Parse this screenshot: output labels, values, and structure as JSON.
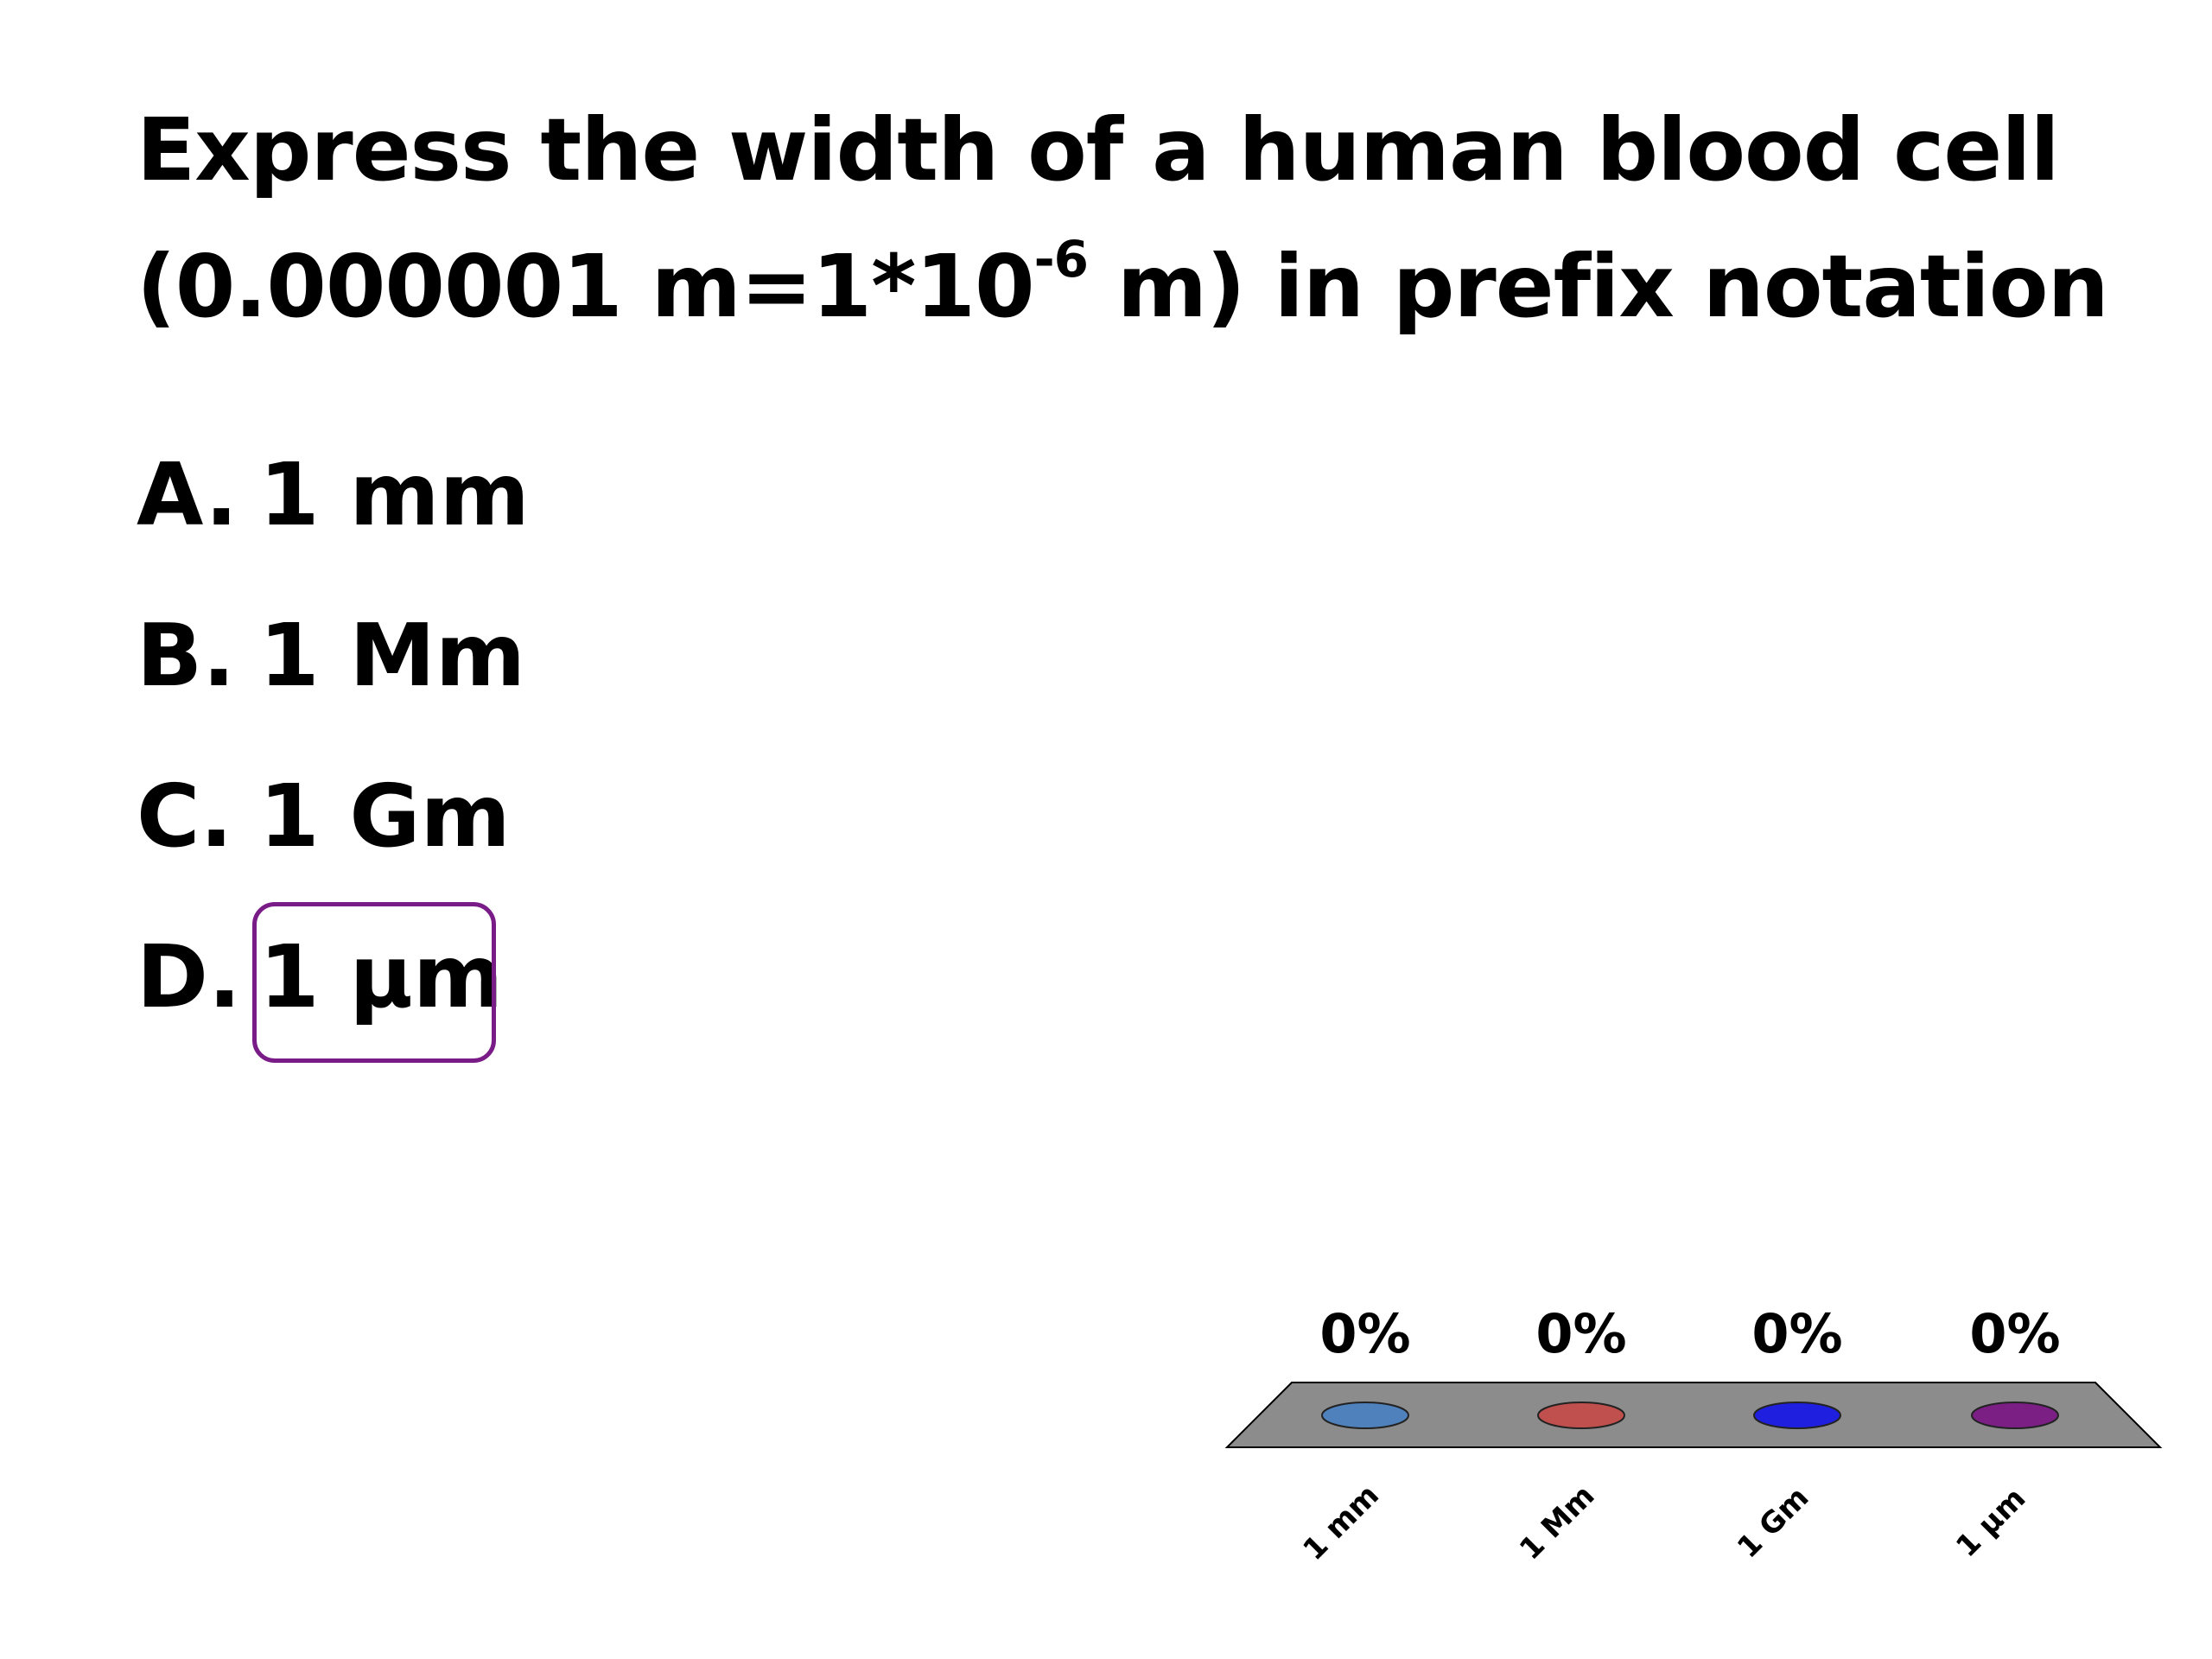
{
  "question": {
    "line1": "Express the width of a human blood cell",
    "line2_pre": "(0.000001 m=1*10",
    "line2_sup": "-6",
    "line2_post": " m) in prefix notation"
  },
  "choices": [
    {
      "letter": "A.",
      "text": "1 mm"
    },
    {
      "letter": "B.",
      "text": "1 Mm"
    },
    {
      "letter": "C.",
      "text": "1 Gm"
    },
    {
      "letter": "D.",
      "text": "1 µm"
    }
  ],
  "correct_choice": "D",
  "colors": {
    "platform": "#8c8c8c",
    "answer_box": "#7a1c87"
  },
  "chart_data": {
    "type": "bar",
    "categories": [
      "1 mm",
      "1 Mm",
      "1 Gm",
      "1 µm"
    ],
    "values": [
      0,
      0,
      0,
      0
    ],
    "value_labels": [
      "0%",
      "0%",
      "0%",
      "0%"
    ],
    "series_colors": [
      "#4f81bd",
      "#c0504d",
      "#1f1fe0",
      "#7b1f85"
    ],
    "ylim": [
      0,
      100
    ],
    "grid": false
  }
}
